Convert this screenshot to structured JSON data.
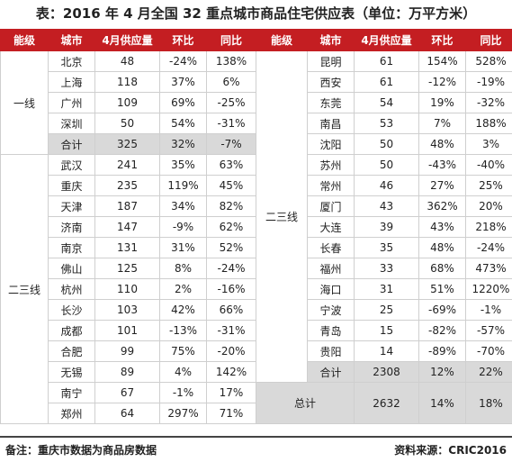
{
  "title": "表：2016 年 4 月全国 32 重点城市商品住宅供应表（单位：万平方米）",
  "headers": [
    "能级",
    "城市",
    "4月供应量",
    "环比",
    "同比",
    "能级",
    "城市",
    "4月供应量",
    "环比",
    "同比"
  ],
  "tiers": {
    "tier1": "一线",
    "tier23": "二三线"
  },
  "left_rows": [
    [
      "北京",
      "48",
      "-24%",
      "138%"
    ],
    [
      "上海",
      "118",
      "37%",
      "6%"
    ],
    [
      "广州",
      "109",
      "69%",
      "-25%"
    ],
    [
      "深圳",
      "50",
      "54%",
      "-31%"
    ],
    [
      "合计",
      "325",
      "32%",
      "-7%"
    ],
    [
      "武汉",
      "241",
      "35%",
      "63%"
    ],
    [
      "重庆",
      "235",
      "119%",
      "45%"
    ],
    [
      "天津",
      "187",
      "34%",
      "82%"
    ],
    [
      "济南",
      "147",
      "-9%",
      "62%"
    ],
    [
      "南京",
      "131",
      "31%",
      "52%"
    ],
    [
      "佛山",
      "125",
      "8%",
      "-24%"
    ],
    [
      "杭州",
      "110",
      "2%",
      "-16%"
    ],
    [
      "长沙",
      "103",
      "42%",
      "66%"
    ],
    [
      "成都",
      "101",
      "-13%",
      "-31%"
    ],
    [
      "合肥",
      "99",
      "75%",
      "-20%"
    ],
    [
      "无锡",
      "89",
      "4%",
      "142%"
    ],
    [
      "南宁",
      "67",
      "-1%",
      "17%"
    ],
    [
      "郑州",
      "64",
      "297%",
      "71%"
    ]
  ],
  "right_rows": [
    [
      "昆明",
      "61",
      "154%",
      "528%"
    ],
    [
      "西安",
      "61",
      "-12%",
      "-19%"
    ],
    [
      "东莞",
      "54",
      "19%",
      "-32%"
    ],
    [
      "南昌",
      "53",
      "7%",
      "188%"
    ],
    [
      "沈阳",
      "50",
      "48%",
      "3%"
    ],
    [
      "苏州",
      "50",
      "-43%",
      "-40%"
    ],
    [
      "常州",
      "46",
      "27%",
      "25%"
    ],
    [
      "厦门",
      "43",
      "362%",
      "20%"
    ],
    [
      "大连",
      "39",
      "43%",
      "218%"
    ],
    [
      "长春",
      "35",
      "48%",
      "-24%"
    ],
    [
      "福州",
      "33",
      "68%",
      "473%"
    ],
    [
      "海口",
      "31",
      "51%",
      "1220%"
    ],
    [
      "宁波",
      "25",
      "-69%",
      "-1%"
    ],
    [
      "青岛",
      "15",
      "-82%",
      "-57%"
    ],
    [
      "贵阳",
      "14",
      "-89%",
      "-70%"
    ],
    [
      "合计",
      "2308",
      "12%",
      "22%"
    ]
  ],
  "total": {
    "label": "总计",
    "supply": "2632",
    "mom": "14%",
    "yoy": "18%"
  },
  "footer": {
    "note": "备注：重庆市数据为商品房数据",
    "source": "资料来源：CRIC2016"
  },
  "colors": {
    "header_bg": "#c41e22",
    "subtotal_bg": "#d9d9d9"
  }
}
